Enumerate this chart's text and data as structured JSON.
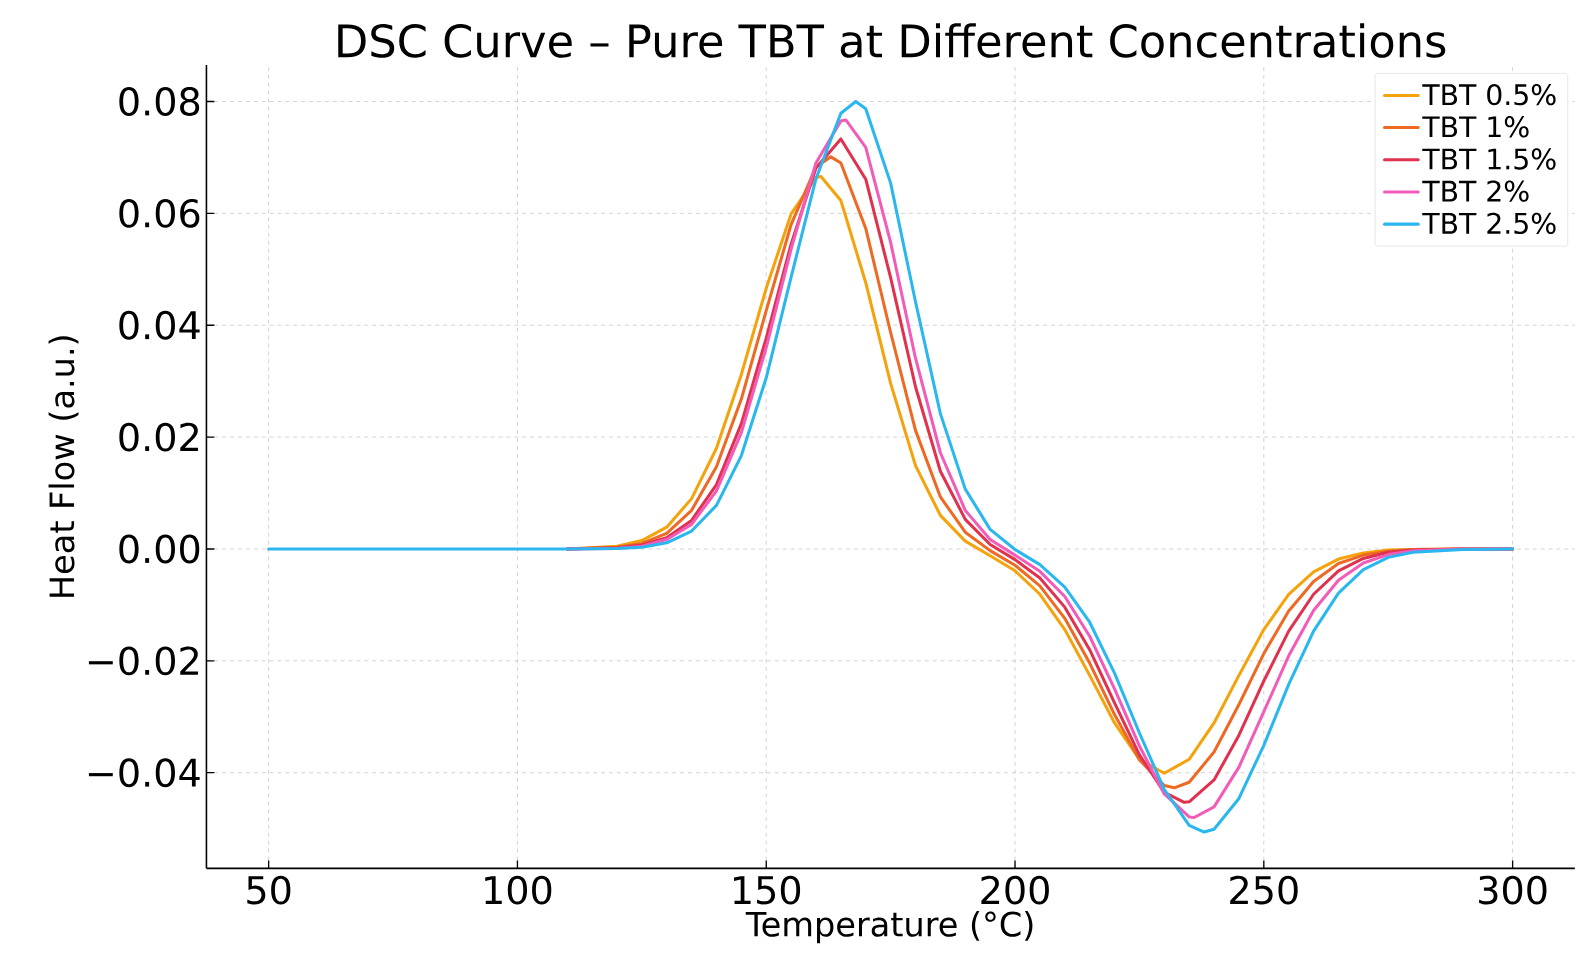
{
  "chart_data": {
    "type": "line",
    "title": "DSC Curve – Pure TBT at Different Concentrations",
    "xlabel": "Temperature (°C)",
    "ylabel": "Heat Flow (a.u.)",
    "xlim": [
      37.5,
      312.5
    ],
    "ylim": [
      -0.0571,
      0.0865
    ],
    "xticks": [
      50,
      100,
      150,
      200,
      250,
      300
    ],
    "yticks": [
      {
        "value": -0.04,
        "label": "−0.04"
      },
      {
        "value": -0.02,
        "label": "−0.02"
      },
      {
        "value": 0,
        "label": "0.00"
      },
      {
        "value": 0.02,
        "label": "0.02"
      },
      {
        "value": 0.04,
        "label": "0.04"
      },
      {
        "value": 0.06,
        "label": "0.06"
      },
      {
        "value": 0.08,
        "label": "0.08"
      }
    ],
    "grid": true,
    "legend": "top right",
    "series": [
      {
        "name": "TBT 0.5%",
        "color": "#f4a30c",
        "x": [
          110,
          120,
          125,
          130,
          135,
          140,
          145,
          150,
          155,
          160,
          161,
          165,
          170,
          175,
          180,
          185,
          190,
          195,
          200,
          205,
          210,
          215,
          220,
          225,
          230,
          235,
          240,
          245,
          250,
          255,
          260,
          265,
          270,
          275,
          280,
          290,
          300
        ],
        "values": [
          0,
          0.0005,
          0.0015,
          0.0039,
          0.009,
          0.018,
          0.0312,
          0.0466,
          0.0599,
          0.0664,
          0.0666,
          0.0623,
          0.0476,
          0.0296,
          0.0149,
          0.006,
          0.0014,
          -0.0012,
          -0.0039,
          -0.0081,
          -0.0144,
          -0.0226,
          -0.0311,
          -0.0376,
          -0.0401,
          -0.0376,
          -0.0311,
          -0.0226,
          -0.0144,
          -0.0081,
          -0.0041,
          -0.0018,
          -0.0007,
          -0.0002,
          -0.0001,
          0,
          0
        ]
      },
      {
        "name": "TBT 1%",
        "color": "#ee6a24",
        "x": [
          110,
          120,
          125,
          130,
          135,
          140,
          145,
          150,
          155,
          160,
          163,
          165,
          170,
          175,
          180,
          185,
          190,
          195,
          200,
          205,
          210,
          215,
          220,
          225,
          230,
          232,
          235,
          240,
          245,
          250,
          255,
          260,
          265,
          270,
          275,
          280,
          290,
          300
        ],
        "values": [
          0,
          0.0003,
          0.001,
          0.0028,
          0.0069,
          0.0147,
          0.0268,
          0.0426,
          0.058,
          0.0683,
          0.0701,
          0.069,
          0.0573,
          0.0387,
          0.0212,
          0.0093,
          0.003,
          -0.0003,
          -0.0029,
          -0.0066,
          -0.0124,
          -0.0204,
          -0.0296,
          -0.0377,
          -0.0423,
          -0.0427,
          -0.0417,
          -0.0363,
          -0.0278,
          -0.0187,
          -0.0111,
          -0.0058,
          -0.0026,
          -0.0011,
          -0.0004,
          -0.0001,
          0,
          0
        ]
      },
      {
        "name": "TBT 1.5%",
        "color": "#e0314f",
        "x": [
          110,
          120,
          125,
          130,
          135,
          140,
          145,
          150,
          155,
          160,
          165,
          170,
          175,
          180,
          185,
          190,
          195,
          200,
          205,
          210,
          215,
          220,
          225,
          230,
          234,
          235,
          240,
          245,
          250,
          255,
          260,
          265,
          270,
          275,
          280,
          290,
          300
        ],
        "values": [
          0,
          0.0002,
          0.0007,
          0.002,
          0.0051,
          0.0115,
          0.0224,
          0.0377,
          0.0545,
          0.0681,
          0.0733,
          0.0661,
          0.0485,
          0.029,
          0.0139,
          0.0053,
          0.0008,
          -0.0019,
          -0.0052,
          -0.0104,
          -0.018,
          -0.0275,
          -0.0368,
          -0.0435,
          -0.0453,
          -0.0452,
          -0.0413,
          -0.0333,
          -0.0236,
          -0.0147,
          -0.0081,
          -0.0039,
          -0.0017,
          -0.0006,
          -0.0002,
          0,
          0
        ]
      },
      {
        "name": "TBT 2%",
        "color": "#f25cb9",
        "x": [
          110,
          120,
          125,
          130,
          135,
          140,
          145,
          150,
          155,
          160,
          165,
          166,
          170,
          175,
          180,
          185,
          190,
          195,
          200,
          205,
          210,
          215,
          220,
          225,
          230,
          235,
          236,
          240,
          245,
          250,
          255,
          260,
          265,
          270,
          275,
          280,
          290,
          300
        ],
        "values": [
          0,
          0.0001,
          0.0005,
          0.0017,
          0.0044,
          0.0104,
          0.0208,
          0.036,
          0.0536,
          0.069,
          0.0765,
          0.0767,
          0.0718,
          0.0548,
          0.0341,
          0.0172,
          0.0069,
          0.0017,
          -0.0011,
          -0.004,
          -0.0085,
          -0.0156,
          -0.025,
          -0.0352,
          -0.0438,
          -0.0479,
          -0.048,
          -0.0461,
          -0.039,
          -0.0291,
          -0.0191,
          -0.011,
          -0.0056,
          -0.0025,
          -0.001,
          -0.0003,
          0,
          0
        ]
      },
      {
        "name": "TBT 2.5%",
        "color": "#2ab7f0",
        "x": [
          50,
          100,
          110,
          120,
          125,
          130,
          135,
          140,
          145,
          150,
          155,
          160,
          165,
          168,
          170,
          175,
          180,
          185,
          190,
          195,
          200,
          205,
          210,
          215,
          220,
          225,
          230,
          235,
          238,
          240,
          245,
          250,
          255,
          260,
          265,
          270,
          275,
          280,
          290,
          300
        ],
        "values": [
          0,
          0,
          0,
          0.0001,
          0.0003,
          0.0011,
          0.0032,
          0.0078,
          0.0167,
          0.0306,
          0.0486,
          0.0662,
          0.0779,
          0.08,
          0.0787,
          0.0654,
          0.0442,
          0.0242,
          0.0107,
          0.0035,
          -0.0001,
          -0.0028,
          -0.0068,
          -0.0131,
          -0.0222,
          -0.0329,
          -0.043,
          -0.0494,
          -0.0506,
          -0.0501,
          -0.0446,
          -0.0351,
          -0.0242,
          -0.0147,
          -0.0079,
          -0.0037,
          -0.0015,
          -0.0006,
          -0.0001,
          0
        ]
      }
    ]
  }
}
